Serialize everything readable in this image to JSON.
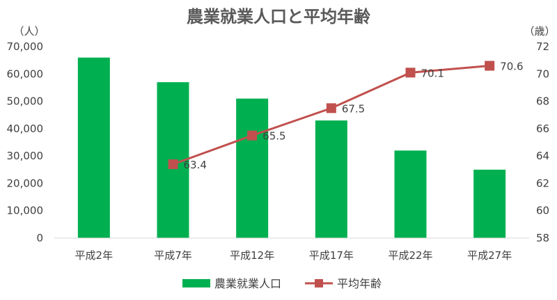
{
  "chart_data": {
    "type": "bar",
    "title": "農業就業人口と平均年齢",
    "categories": [
      "平成2年",
      "平成7年",
      "平成12年",
      "平成17年",
      "平成22年",
      "平成27年"
    ],
    "series": [
      {
        "name": "農業就業人口",
        "type": "bar",
        "axis": "left",
        "color": "#00b050",
        "values": [
          66000,
          57000,
          51000,
          43000,
          32000,
          25000
        ]
      },
      {
        "name": "平均年齢",
        "type": "line",
        "axis": "right",
        "color": "#c0504d",
        "values": [
          null,
          63.4,
          65.5,
          67.5,
          70.1,
          70.6
        ],
        "data_labels": [
          null,
          "63.4",
          "65.5",
          "67.5",
          "70.1",
          "70.6"
        ]
      }
    ],
    "y_left": {
      "unit_label": "（人）",
      "ylim": [
        0,
        70000
      ],
      "ticks": [
        0,
        10000,
        20000,
        30000,
        40000,
        50000,
        60000,
        70000
      ],
      "tick_labels": [
        "0",
        "10,000",
        "20,000",
        "30,000",
        "40,000",
        "50,000",
        "60,000",
        "70,000"
      ]
    },
    "y_right": {
      "unit_label": "（歳）",
      "ylim": [
        58,
        72
      ],
      "ticks": [
        58,
        60,
        62,
        64,
        66,
        68,
        70,
        72
      ],
      "tick_labels": [
        "58",
        "60",
        "62",
        "64",
        "66",
        "68",
        "70",
        "72"
      ]
    },
    "grid": false,
    "legend_position": "bottom"
  }
}
